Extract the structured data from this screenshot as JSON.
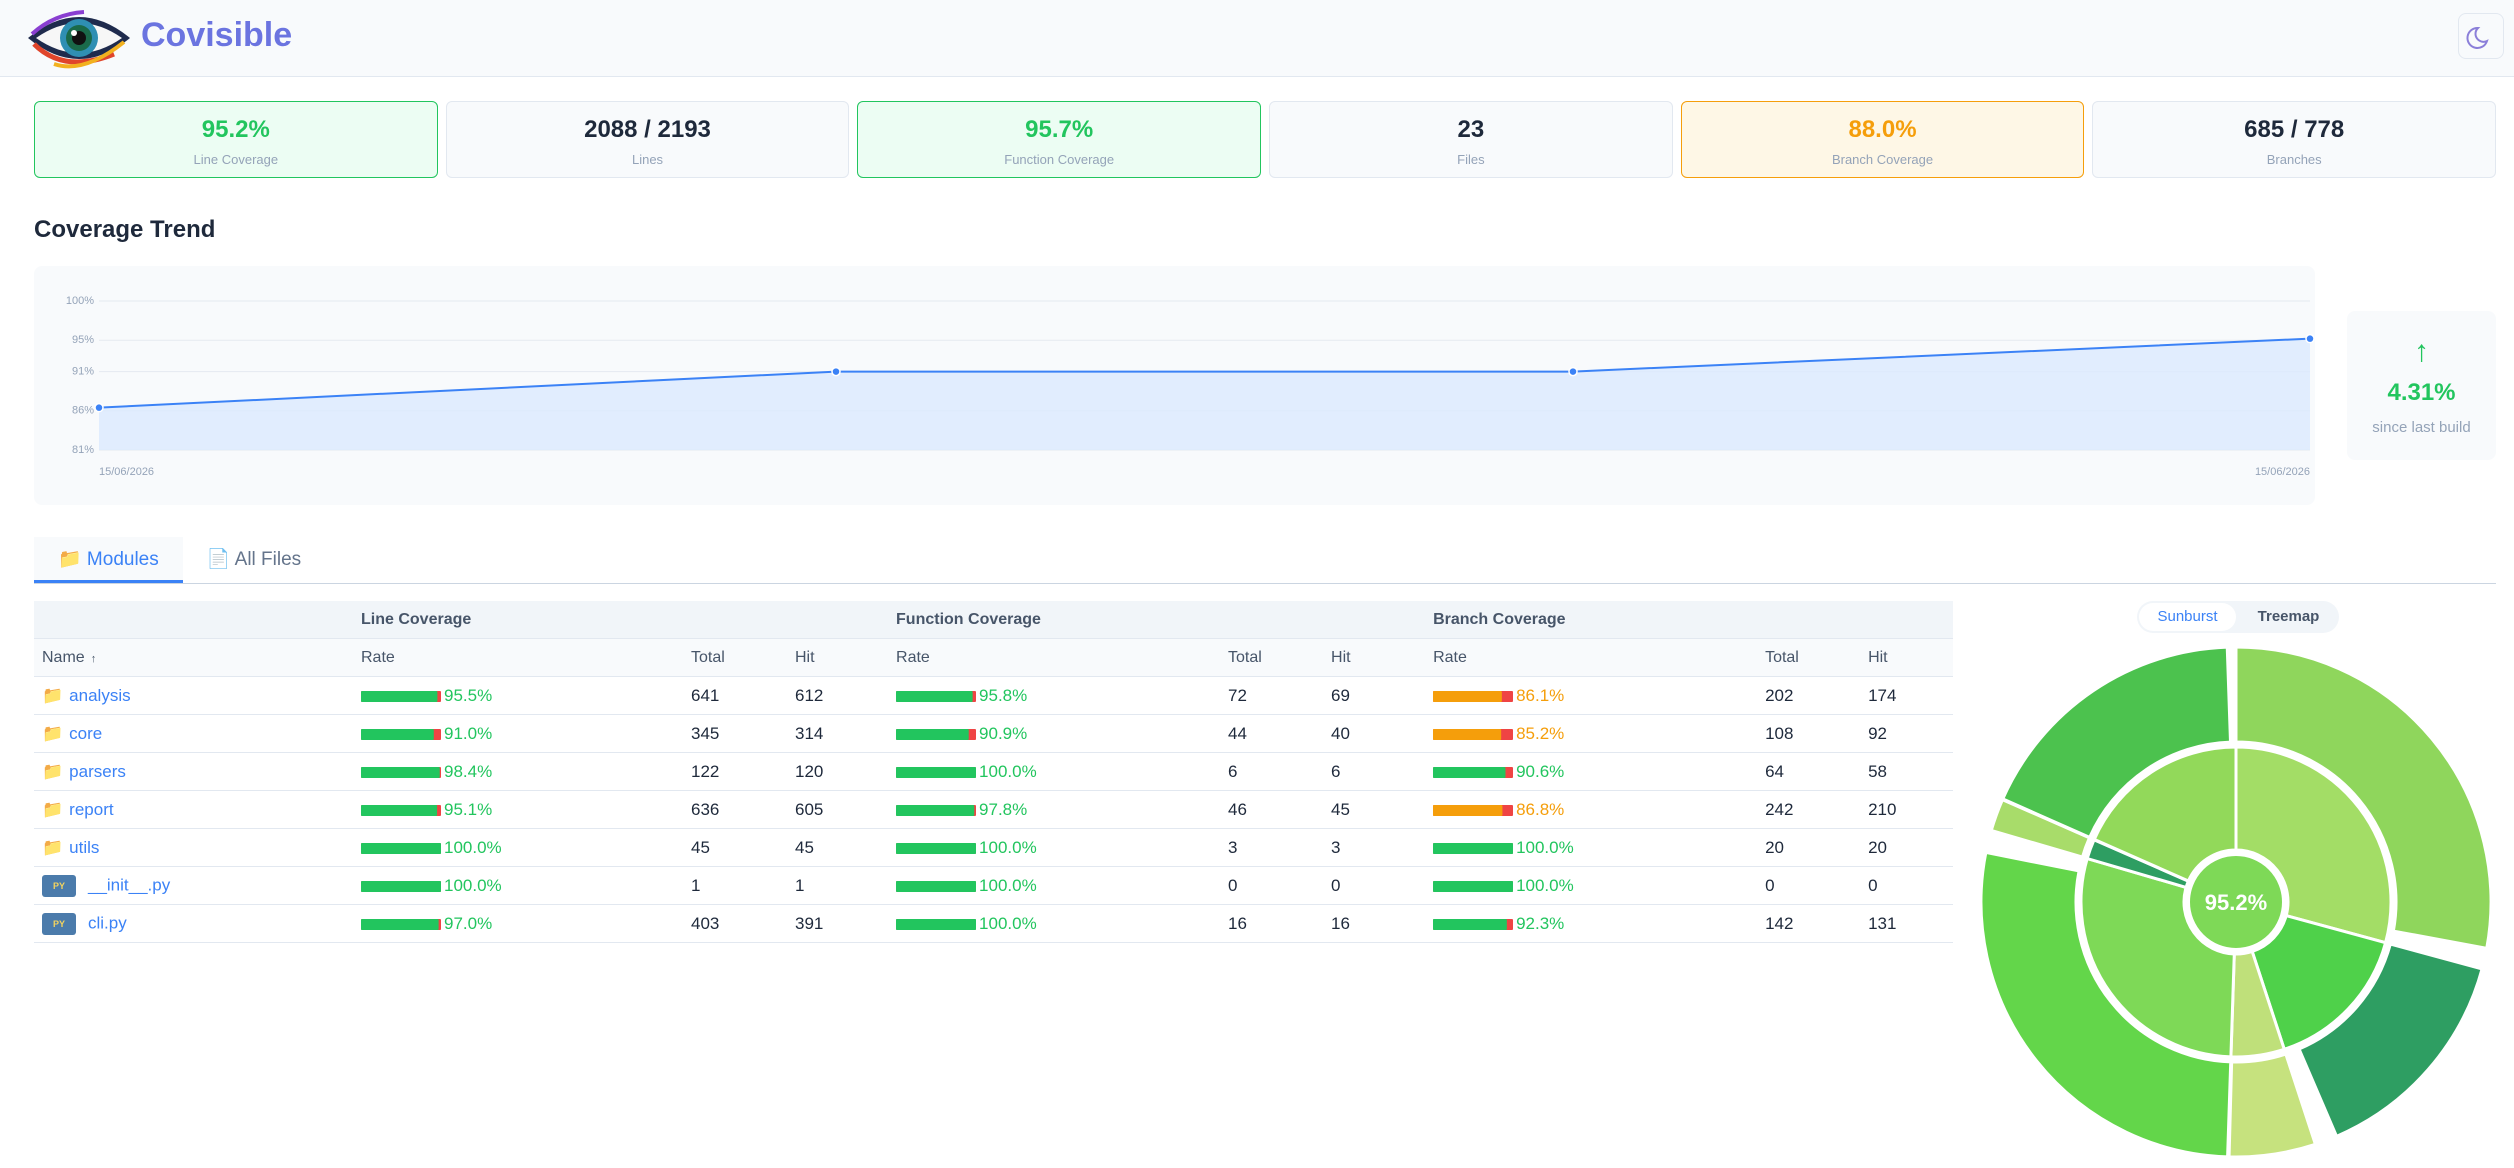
{
  "header": {
    "title": "Covisible"
  },
  "stats": [
    {
      "value": "95.2%",
      "label": "Line Coverage",
      "color": "#22c55e",
      "border": "#22c55e",
      "background": "#ecfdf3"
    },
    {
      "value": "2088 / 2193",
      "label": "Lines",
      "color": "#1e293b",
      "border": "#e2e8f0",
      "background": "#f8fafc"
    },
    {
      "value": "95.7%",
      "label": "Function Coverage",
      "color": "#22c55e",
      "border": "#22c55e",
      "background": "#ecfdf3"
    },
    {
      "value": "23",
      "label": "Files",
      "color": "#1e293b",
      "border": "#e2e8f0",
      "background": "#f8fafc"
    },
    {
      "value": "88.0%",
      "label": "Branch Coverage",
      "color": "#f59e0b",
      "border": "#f59e0b",
      "background": "#fef7e6"
    },
    {
      "value": "685 / 778",
      "label": "Branches",
      "color": "#1e293b",
      "border": "#e2e8f0",
      "background": "#f8fafc"
    }
  ],
  "trend": {
    "title": "Coverage Trend",
    "x": [
      "15/06/2026",
      null,
      null,
      "15/06/2026"
    ],
    "values": [
      86.4,
      91,
      91,
      95.2
    ],
    "ylim": [
      81,
      100
    ],
    "yticks": [
      {
        "value": 81,
        "label": "81%"
      },
      {
        "value": 86,
        "label": "86%"
      },
      {
        "value": 91,
        "label": "91%"
      },
      {
        "value": 95,
        "label": "95%"
      },
      {
        "value": 100,
        "label": "100%"
      }
    ],
    "color": "#3b82f6",
    "area_color": "#dbeafe",
    "grid": true
  },
  "delta": {
    "arrow": "↑",
    "value": "4.31%",
    "caption": "since last build",
    "color": "#22c55e"
  },
  "tabs": [
    "📁 Modules",
    "📄 All Files"
  ],
  "active_tab": 0,
  "table": {
    "groups": [
      "Line Coverage",
      "Function Coverage",
      "Branch Coverage"
    ],
    "name_header": "Name",
    "sort_arrow": "↑",
    "sub_headers": [
      "Rate",
      "Total",
      "Hit"
    ],
    "miss_color": "#ef4444",
    "rows": [
      {
        "icon": "📁",
        "name": "analysis",
        "line": {
          "rate": 95.5,
          "rate_label": "95.5%",
          "total": 641,
          "hit": 612,
          "color": "#22c55e"
        },
        "function": {
          "rate": 95.8,
          "rate_label": "95.8%",
          "total": 72,
          "hit": 69,
          "color": "#22c55e"
        },
        "branch": {
          "rate": 86.1,
          "rate_label": "86.1%",
          "total": 202,
          "hit": 174,
          "color": "#f59e0b"
        }
      },
      {
        "icon": "📁",
        "name": "core",
        "line": {
          "rate": 91.0,
          "rate_label": "91.0%",
          "total": 345,
          "hit": 314,
          "color": "#22c55e"
        },
        "function": {
          "rate": 90.9,
          "rate_label": "90.9%",
          "total": 44,
          "hit": 40,
          "color": "#22c55e"
        },
        "branch": {
          "rate": 85.2,
          "rate_label": "85.2%",
          "total": 108,
          "hit": 92,
          "color": "#f59e0b"
        }
      },
      {
        "icon": "📁",
        "name": "parsers",
        "line": {
          "rate": 98.4,
          "rate_label": "98.4%",
          "total": 122,
          "hit": 120,
          "color": "#22c55e"
        },
        "function": {
          "rate": 100,
          "rate_label": "100.0%",
          "total": 6,
          "hit": 6,
          "color": "#22c55e"
        },
        "branch": {
          "rate": 90.6,
          "rate_label": "90.6%",
          "total": 64,
          "hit": 58,
          "color": "#22c55e"
        }
      },
      {
        "icon": "📁",
        "name": "report",
        "line": {
          "rate": 95.1,
          "rate_label": "95.1%",
          "total": 636,
          "hit": 605,
          "color": "#22c55e"
        },
        "function": {
          "rate": 97.8,
          "rate_label": "97.8%",
          "total": 46,
          "hit": 45,
          "color": "#22c55e"
        },
        "branch": {
          "rate": 86.8,
          "rate_label": "86.8%",
          "total": 242,
          "hit": 210,
          "color": "#f59e0b"
        }
      },
      {
        "icon": "📁",
        "name": "utils",
        "line": {
          "rate": 100,
          "rate_label": "100.0%",
          "total": 45,
          "hit": 45,
          "color": "#22c55e"
        },
        "function": {
          "rate": 100,
          "rate_label": "100.0%",
          "total": 3,
          "hit": 3,
          "color": "#22c55e"
        },
        "branch": {
          "rate": 100,
          "rate_label": "100.0%",
          "total": 20,
          "hit": 20,
          "color": "#22c55e"
        }
      },
      {
        "badge": "PY",
        "name": "__init__.py",
        "line": {
          "rate": 100,
          "rate_label": "100.0%",
          "total": 1,
          "hit": 1,
          "color": "#22c55e"
        },
        "function": {
          "rate": 100,
          "rate_label": "100.0%",
          "total": 0,
          "hit": 0,
          "color": "#22c55e"
        },
        "branch": {
          "rate": 100,
          "rate_label": "100.0%",
          "total": 0,
          "hit": 0,
          "color": "#22c55e"
        }
      },
      {
        "badge": "PY",
        "name": "cli.py",
        "line": {
          "rate": 97.0,
          "rate_label": "97.0%",
          "total": 403,
          "hit": 391,
          "color": "#22c55e"
        },
        "function": {
          "rate": 100,
          "rate_label": "100.0%",
          "total": 16,
          "hit": 16,
          "color": "#22c55e"
        },
        "branch": {
          "rate": 92.3,
          "rate_label": "92.3%",
          "total": 142,
          "hit": 131,
          "color": "#22c55e"
        }
      }
    ]
  },
  "sunburst": {
    "tabs": [
      "Sunburst",
      "Treemap"
    ],
    "active_tab": 0,
    "center": "95.2%",
    "center_color": "#7ed957",
    "colors": [
      "#a3dd66",
      "#4fd14a",
      "#bfe07a",
      "#7ed957",
      "#2e9e62",
      "#3cb878",
      "#92d95a"
    ],
    "outer_colors": [
      "#8fd65c",
      "#2e9e62",
      "#c6e27e",
      "#63d64a",
      "#a8dc6a",
      "#6bcf55",
      "#4cc24e"
    ]
  }
}
